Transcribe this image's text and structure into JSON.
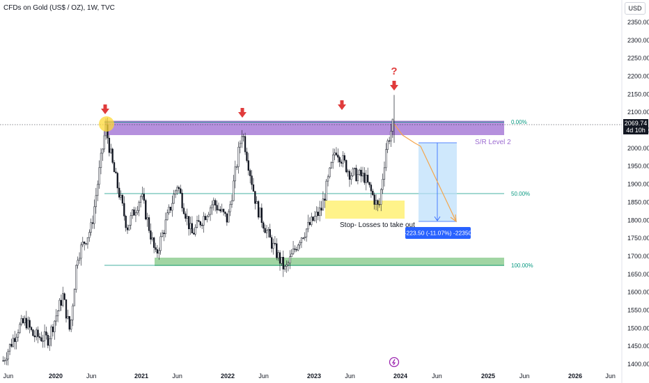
{
  "header": {
    "title": "CFDs on Gold (US$ / OZ), 1W, TVC",
    "currency": "USD"
  },
  "price_tag": {
    "price": "2069.74",
    "countdown": "4d 10h"
  },
  "annotations": {
    "question_mark": "?",
    "stop_loss_text": "Stop- Losses to take out",
    "sr_label": "S/R Level 2",
    "measure_label": "-223.50 (-11.07%) -22350"
  },
  "fib_levels": [
    {
      "label": "0.00%",
      "price": 2075
    },
    {
      "label": "50.00%",
      "price": 1875
    },
    {
      "label": "100.00%",
      "price": 1675
    }
  ],
  "colors": {
    "up_candle": "#131722",
    "resistance_zone": "#9c6bd1",
    "support_zone": "#81c784",
    "stop_zone": "#fff176",
    "fib_line": "#089981",
    "arrow": "#e03b3b",
    "measure_box": "#bbdefb",
    "projection": "#f5a54a"
  },
  "chart_data": {
    "type": "candlestick",
    "title": "CFDs on Gold (US$ / OZ), 1W, TVC",
    "y_ticks": [
      1400,
      1450,
      1500,
      1550,
      1600,
      1650,
      1700,
      1750,
      1800,
      1850,
      1900,
      1950,
      2000,
      2050,
      2100,
      2150,
      2200,
      2250,
      2300,
      2350
    ],
    "y_tick_labels": [
      "1400.00",
      "1450.00",
      "1500.00",
      "1550.00",
      "1600.00",
      "1650.00",
      "1700.00",
      "1750.00",
      "1800.00",
      "1850.00",
      "1900.00",
      "1950.00",
      "2000.00",
      "2050.00",
      "2100.00",
      "2150.00",
      "2200.00",
      "2250.00",
      "2300.00",
      "2350.00"
    ],
    "ylim": [
      1390,
      2380
    ],
    "x_ticks": [
      "Jun",
      "2020",
      "Jun",
      "2021",
      "Jun",
      "2022",
      "Jun",
      "2023",
      "Jun",
      "2024",
      "Jun",
      "2025",
      "Jun",
      "2026",
      "Jun"
    ],
    "x_tick_dates": [
      "2019-06",
      "2020-01",
      "2020-06",
      "2021-01",
      "2021-06",
      "2022-01",
      "2022-06",
      "2023-01",
      "2023-06",
      "2024-01",
      "2024-06",
      "2025-01",
      "2025-06",
      "2026-01",
      "2026-06"
    ],
    "price_path": {
      "dates": [
        "2019-06",
        "2019-08",
        "2019-09",
        "2019-10",
        "2019-12",
        "2020-02",
        "2020-03",
        "2020-04",
        "2020-06",
        "2020-08",
        "2020-09",
        "2020-11",
        "2021-01",
        "2021-03",
        "2021-06",
        "2021-08",
        "2021-11",
        "2022-01",
        "2022-03",
        "2022-05",
        "2022-07",
        "2022-09",
        "2022-11",
        "2023-02",
        "2023-04",
        "2023-06",
        "2023-08",
        "2023-10",
        "2023-11",
        "2023-12"
      ],
      "close": [
        1410,
        1500,
        1520,
        1480,
        1470,
        1590,
        1490,
        1700,
        1780,
        2060,
        1950,
        1780,
        1870,
        1700,
        1900,
        1760,
        1850,
        1800,
        2050,
        1840,
        1740,
        1660,
        1750,
        1830,
        2000,
        1930,
        1920,
        1830,
        2000,
        2070
      ]
    },
    "zones": [
      {
        "name": "resistance",
        "low": 2040,
        "high": 2080,
        "from": "2020-08",
        "to": "2024-09"
      },
      {
        "name": "support",
        "low": 1675,
        "high": 1698,
        "from": "2021-02",
        "to": "2024-09"
      },
      {
        "name": "stop-losses",
        "low": 1810,
        "high": 1855,
        "from": "2023-02",
        "to": "2024-01"
      }
    ],
    "measure": {
      "from": 2020,
      "to": 1796.5,
      "change": -223.5,
      "percent": -11.07
    }
  }
}
